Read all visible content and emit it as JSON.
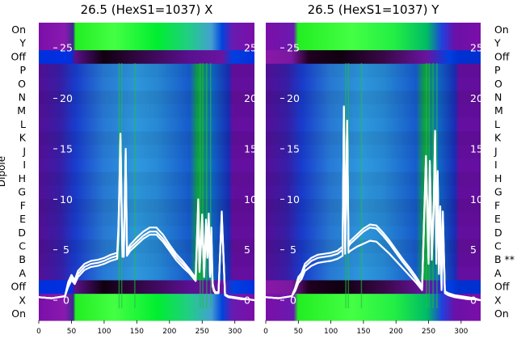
{
  "figure": {
    "ylabel": "Dipole"
  },
  "chart_data": [
    {
      "type": "heatmap",
      "title": "26.5 (HexS1=1037) X",
      "xlabel": "",
      "ylabel": "Dipole",
      "x_ticks": [
        0,
        50,
        100,
        150,
        200,
        250,
        300
      ],
      "xlim": [
        0,
        330
      ],
      "overlay_y_ticks": [
        0,
        5,
        10,
        15,
        20,
        25
      ],
      "overlay_ylim": [
        -2.0,
        27.5
      ],
      "rows_bottom_to_top": [
        "On",
        "X",
        "Off",
        "A",
        "B",
        "C",
        "D",
        "E",
        "F",
        "G",
        "H",
        "I",
        "J",
        "K",
        "L",
        "M",
        "N",
        "O",
        "P",
        "Off",
        "Y",
        "On"
      ],
      "lines": [
        {
          "x": [
            0,
            20,
            40,
            45,
            50,
            55,
            60,
            70,
            80,
            90,
            100,
            110,
            120,
            122,
            125,
            128,
            130,
            133,
            135,
            140,
            150,
            160,
            170,
            180,
            190,
            200,
            210,
            220,
            230,
            240,
            244,
            246,
            250,
            253,
            256,
            258,
            260,
            262,
            264,
            266,
            268,
            270,
            275,
            280,
            285,
            290,
            300,
            310,
            320,
            330
          ],
          "y": [
            0.3,
            0.2,
            0.4,
            1.5,
            2.2,
            1.8,
            2.6,
            3.3,
            3.6,
            3.7,
            3.9,
            4.2,
            4.4,
            7.0,
            16.0,
            4.6,
            4.6,
            14.5,
            4.7,
            5.2,
            5.8,
            6.4,
            6.8,
            6.8,
            6.1,
            5.2,
            4.3,
            3.6,
            2.9,
            2.0,
            9.5,
            3.0,
            8.0,
            2.5,
            7.6,
            4.5,
            8.2,
            2.5,
            6.8,
            1.5,
            1.0,
            0.7,
            0.7,
            8.5,
            0.5,
            0.3,
            0.2,
            0.1,
            0.1,
            0.0
          ]
        },
        {
          "x": [
            0,
            20,
            40,
            45,
            50,
            55,
            60,
            70,
            80,
            90,
            100,
            110,
            120,
            122,
            125,
            128,
            130,
            133,
            135,
            140,
            150,
            160,
            170,
            180,
            190,
            200,
            210,
            220,
            230,
            240,
            244,
            246,
            250,
            253,
            256,
            258,
            260,
            262,
            264,
            266,
            268,
            270,
            275,
            280,
            285,
            290,
            300,
            310,
            320,
            330
          ],
          "y": [
            0.3,
            0.2,
            0.4,
            1.8,
            2.5,
            2.0,
            2.9,
            3.6,
            3.9,
            4.0,
            4.2,
            4.5,
            4.7,
            7.5,
            16.5,
            4.8,
            4.8,
            15.0,
            4.9,
            5.5,
            6.2,
            6.8,
            7.2,
            7.2,
            6.5,
            5.5,
            4.6,
            3.9,
            3.1,
            2.2,
            10.0,
            3.3,
            8.5,
            2.8,
            8.0,
            4.8,
            8.6,
            2.8,
            7.2,
            1.7,
            1.1,
            0.8,
            0.8,
            8.8,
            0.6,
            0.4,
            0.3,
            0.2,
            0.1,
            0.0
          ]
        },
        {
          "x": [
            0,
            20,
            40,
            45,
            50,
            55,
            60,
            70,
            80,
            90,
            100,
            110,
            120,
            122,
            125,
            128,
            130,
            133,
            135,
            140,
            150,
            160,
            170,
            180,
            190,
            200,
            210,
            220,
            230,
            240,
            244,
            246,
            250,
            253,
            256,
            258,
            260,
            262,
            264,
            266,
            268,
            270,
            275,
            280,
            285,
            290,
            300,
            310,
            320,
            330
          ],
          "y": [
            0.3,
            0.2,
            0.4,
            1.3,
            2.0,
            1.6,
            2.3,
            3.0,
            3.3,
            3.4,
            3.6,
            3.9,
            4.1,
            6.5,
            15.5,
            4.3,
            4.3,
            14.0,
            4.4,
            4.9,
            5.5,
            6.1,
            6.5,
            6.5,
            5.8,
            4.9,
            4.0,
            3.3,
            2.7,
            1.9,
            9.0,
            2.8,
            7.6,
            2.3,
            7.2,
            4.2,
            7.8,
            2.3,
            6.4,
            1.4,
            0.9,
            0.7,
            0.7,
            8.2,
            0.5,
            0.3,
            0.2,
            0.1,
            0.1,
            0.0
          ]
        }
      ]
    },
    {
      "type": "heatmap",
      "title": "26.5 (HexS1=1037) Y",
      "xlabel": "",
      "ylabel": "",
      "x_ticks": [
        0,
        50,
        100,
        150,
        200,
        250,
        300
      ],
      "xlim": [
        0,
        330
      ],
      "overlay_y_ticks": [
        0,
        5,
        10,
        15,
        20,
        25
      ],
      "overlay_ylim": [
        -2.0,
        27.5
      ],
      "rows_bottom_to_top": [
        "On",
        "X",
        "Off",
        "A",
        "B **",
        "C",
        "D",
        "E",
        "F",
        "G",
        "H",
        "I",
        "J",
        "K",
        "L",
        "M",
        "N",
        "O",
        "P",
        "Off",
        "Y",
        "On"
      ],
      "lines": [
        {
          "x": [
            0,
            20,
            40,
            45,
            50,
            55,
            60,
            70,
            80,
            90,
            100,
            110,
            118,
            120,
            122,
            125,
            127,
            130,
            140,
            150,
            160,
            170,
            180,
            190,
            200,
            210,
            220,
            230,
            240,
            246,
            250,
            252,
            255,
            258,
            260,
            262,
            264,
            266,
            268,
            270,
            272,
            275,
            280,
            285,
            290,
            300,
            310,
            320,
            330
          ],
          "y": [
            0.3,
            0.2,
            0.4,
            1.0,
            2.0,
            2.4,
            3.3,
            3.9,
            4.2,
            4.3,
            4.4,
            4.6,
            5.0,
            19.0,
            5.2,
            17.5,
            5.3,
            5.6,
            6.2,
            6.8,
            7.2,
            7.1,
            6.4,
            5.6,
            4.7,
            3.8,
            3.0,
            2.1,
            1.2,
            14.0,
            4.0,
            13.5,
            4.5,
            9.5,
            16.5,
            4.0,
            12.5,
            3.0,
            9.0,
            1.2,
            8.5,
            0.8,
            0.6,
            0.5,
            0.4,
            0.3,
            0.2,
            0.1,
            0.0
          ]
        },
        {
          "x": [
            0,
            20,
            40,
            45,
            50,
            55,
            60,
            70,
            80,
            90,
            100,
            110,
            118,
            120,
            122,
            125,
            127,
            130,
            140,
            150,
            160,
            170,
            180,
            190,
            200,
            210,
            220,
            230,
            240,
            246,
            250,
            252,
            255,
            258,
            260,
            262,
            264,
            266,
            268,
            270,
            272,
            275,
            280,
            285,
            290,
            300,
            310,
            320,
            330
          ],
          "y": [
            0.3,
            0.2,
            0.4,
            1.2,
            2.3,
            2.7,
            3.6,
            4.2,
            4.5,
            4.6,
            4.7,
            4.9,
            5.3,
            19.2,
            5.5,
            17.8,
            5.6,
            5.9,
            6.5,
            7.1,
            7.5,
            7.4,
            6.7,
            5.9,
            5.0,
            4.1,
            3.3,
            2.4,
            1.4,
            14.3,
            4.3,
            13.8,
            4.8,
            9.8,
            16.8,
            4.3,
            12.8,
            3.3,
            9.3,
            1.4,
            8.8,
            0.9,
            0.7,
            0.6,
            0.5,
            0.4,
            0.3,
            0.2,
            0.0
          ]
        },
        {
          "x": [
            0,
            20,
            40,
            45,
            50,
            55,
            60,
            70,
            80,
            90,
            100,
            110,
            118,
            120,
            122,
            125,
            127,
            130,
            140,
            150,
            160,
            170,
            180,
            190,
            200,
            210,
            220,
            230,
            240,
            246,
            250,
            252,
            255,
            258,
            260,
            262,
            264,
            266,
            268,
            270,
            272,
            275,
            280,
            285,
            290,
            300,
            310,
            320,
            330
          ],
          "y": [
            0.3,
            0.2,
            0.4,
            0.9,
            1.7,
            2.1,
            2.9,
            3.4,
            3.7,
            3.8,
            3.9,
            4.1,
            4.4,
            18.5,
            4.6,
            17.0,
            4.7,
            4.9,
            5.3,
            5.6,
            5.9,
            5.8,
            5.2,
            4.6,
            3.9,
            3.2,
            2.5,
            1.8,
            1.0,
            13.5,
            3.6,
            13.0,
            4.0,
            9.0,
            16.0,
            3.6,
            12.0,
            2.6,
            8.5,
            1.0,
            8.0,
            0.7,
            0.5,
            0.4,
            0.3,
            0.2,
            0.1,
            0.1,
            0.0
          ]
        }
      ]
    }
  ]
}
